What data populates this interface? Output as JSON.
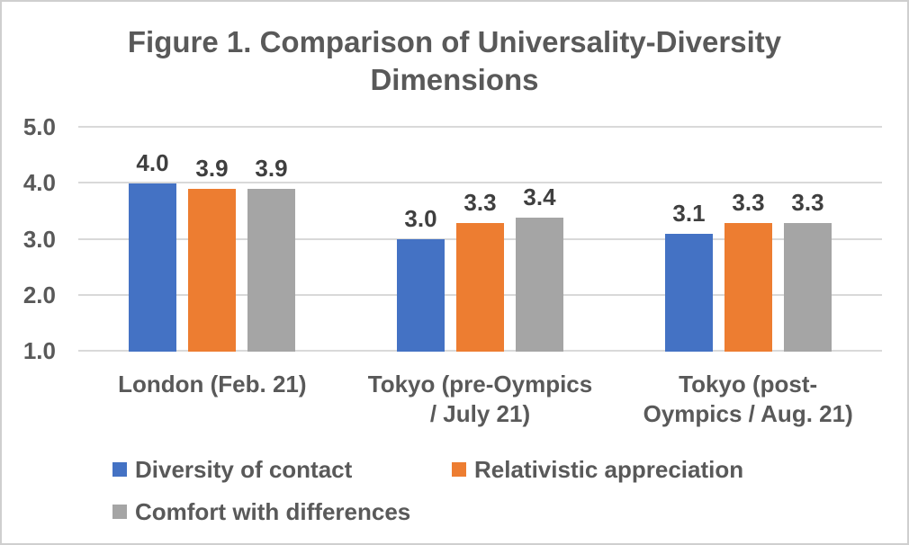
{
  "chart_data": {
    "type": "bar",
    "title": "Figure 1. Comparison of Universality-Diversity Dimensions",
    "categories": [
      "London (Feb. 21)",
      "Tokyo (pre-Oympics / July 21)",
      "Tokyo (post-Oympics / Aug. 21)"
    ],
    "category_display_lines": [
      [
        "London (Feb. 21)"
      ],
      [
        "Tokyo (pre-Oympics",
        "/ July 21)"
      ],
      [
        "Tokyo (post-",
        "Oympics / Aug. 21)"
      ]
    ],
    "series": [
      {
        "name": "Diversity of contact",
        "color": "#4472C4",
        "values": [
          4.0,
          3.0,
          3.1
        ]
      },
      {
        "name": "Relativistic appreciation",
        "color": "#ED7D31",
        "values": [
          3.9,
          3.3,
          3.3
        ]
      },
      {
        "name": "Comfort with differences",
        "color": "#A5A5A5",
        "values": [
          3.9,
          3.4,
          3.3
        ]
      }
    ],
    "y_axis": {
      "min": 1.0,
      "max": 5.0,
      "step": 1.0,
      "tick_labels": [
        "5.0",
        "4.0",
        "3.0",
        "2.0",
        "1.0"
      ]
    },
    "data_labels": {
      "shown": true,
      "format": "one-decimal"
    },
    "legend": {
      "position": "bottom",
      "entries": [
        "Diversity of contact",
        "Relativistic appreciation",
        "Comfort with differences"
      ]
    },
    "grid": true,
    "style": {
      "grid_color": "#D9D9D9",
      "text_color": "#595959",
      "data_label_color": "#3F3F3F",
      "frame_border_color": "#CFCFCF",
      "background": "#FFFFFF"
    }
  }
}
